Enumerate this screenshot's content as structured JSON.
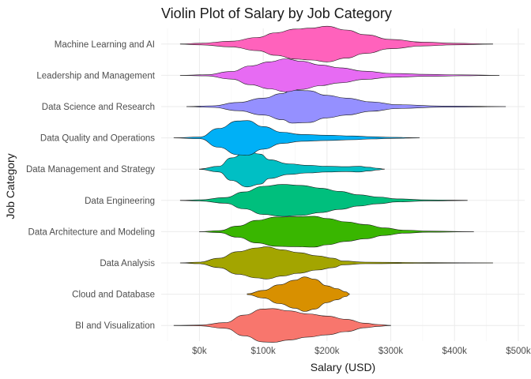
{
  "chart_data": {
    "type": "violin",
    "title": "Violin Plot of Salary by Job Category",
    "xlabel": "Salary (USD)",
    "ylabel": "Job Category",
    "xlim": [
      -60000,
      510000
    ],
    "x_ticks": [
      0,
      100000,
      200000,
      300000,
      400000,
      500000
    ],
    "x_tick_labels": [
      "$0k",
      "$100k",
      "$200k",
      "$300k",
      "$400k",
      "$500k"
    ],
    "grid": true,
    "legend": "none",
    "categories": [
      "BI and Visualization",
      "Cloud and Database",
      "Data Analysis",
      "Data Architecture and Modeling",
      "Data Engineering",
      "Data Management and Strategy",
      "Data Quality and Operations",
      "Data Science and Research",
      "Leadership and Management",
      "Machine Learning and AI"
    ],
    "series": [
      {
        "category": "BI and Visualization",
        "color": "#F8766D",
        "density": [
          [
            -40000,
            0.005
          ],
          [
            0,
            0.02
          ],
          [
            40000,
            0.15
          ],
          [
            70000,
            0.55
          ],
          [
            100000,
            0.88
          ],
          [
            115000,
            0.9
          ],
          [
            140000,
            0.78
          ],
          [
            170000,
            0.62
          ],
          [
            200000,
            0.5
          ],
          [
            230000,
            0.33
          ],
          [
            260000,
            0.12
          ],
          [
            280000,
            0.05
          ],
          [
            300000,
            0.005
          ]
        ]
      },
      {
        "category": "Cloud and Database",
        "color": "#D89000",
        "density": [
          [
            75000,
            0.02
          ],
          [
            100000,
            0.2
          ],
          [
            125000,
            0.5
          ],
          [
            150000,
            0.75
          ],
          [
            165000,
            0.92
          ],
          [
            180000,
            0.8
          ],
          [
            200000,
            0.45
          ],
          [
            215000,
            0.3
          ],
          [
            230000,
            0.12
          ],
          [
            235000,
            0.02
          ]
        ]
      },
      {
        "category": "Data Analysis",
        "color": "#A3A500",
        "density": [
          [
            -30000,
            0.005
          ],
          [
            0,
            0.04
          ],
          [
            30000,
            0.25
          ],
          [
            60000,
            0.6
          ],
          [
            90000,
            0.8
          ],
          [
            105000,
            0.86
          ],
          [
            130000,
            0.7
          ],
          [
            155000,
            0.55
          ],
          [
            185000,
            0.38
          ],
          [
            210000,
            0.25
          ],
          [
            225000,
            0.1
          ],
          [
            260000,
            0.04
          ],
          [
            360000,
            0.015
          ],
          [
            460000,
            0.005
          ]
        ]
      },
      {
        "category": "Data Architecture and Modeling",
        "color": "#39B600",
        "density": [
          [
            0,
            0.005
          ],
          [
            30000,
            0.05
          ],
          [
            60000,
            0.3
          ],
          [
            90000,
            0.6
          ],
          [
            120000,
            0.78
          ],
          [
            150000,
            0.8
          ],
          [
            180000,
            0.82
          ],
          [
            200000,
            0.7
          ],
          [
            230000,
            0.52
          ],
          [
            260000,
            0.38
          ],
          [
            290000,
            0.2
          ],
          [
            320000,
            0.08
          ],
          [
            360000,
            0.03
          ],
          [
            430000,
            0.005
          ]
        ]
      },
      {
        "category": "Data Engineering",
        "color": "#00BF7D",
        "density": [
          [
            -30000,
            0.005
          ],
          [
            0,
            0.03
          ],
          [
            40000,
            0.15
          ],
          [
            70000,
            0.45
          ],
          [
            100000,
            0.75
          ],
          [
            130000,
            0.85
          ],
          [
            160000,
            0.8
          ],
          [
            190000,
            0.65
          ],
          [
            220000,
            0.48
          ],
          [
            250000,
            0.3
          ],
          [
            280000,
            0.18
          ],
          [
            310000,
            0.08
          ],
          [
            360000,
            0.025
          ],
          [
            420000,
            0.005
          ]
        ]
      },
      {
        "category": "Data Management and Strategy",
        "color": "#00BFC4",
        "density": [
          [
            0,
            0.01
          ],
          [
            30000,
            0.15
          ],
          [
            50000,
            0.6
          ],
          [
            75000,
            0.95
          ],
          [
            95000,
            0.8
          ],
          [
            110000,
            0.5
          ],
          [
            140000,
            0.28
          ],
          [
            170000,
            0.2
          ],
          [
            200000,
            0.15
          ],
          [
            230000,
            0.13
          ],
          [
            250000,
            0.15
          ],
          [
            265000,
            0.1
          ],
          [
            280000,
            0.04
          ],
          [
            290000,
            0.005
          ]
        ]
      },
      {
        "category": "Data Quality and Operations",
        "color": "#00B0F6",
        "density": [
          [
            -40000,
            0.005
          ],
          [
            0,
            0.04
          ],
          [
            30000,
            0.5
          ],
          [
            60000,
            0.9
          ],
          [
            75000,
            0.92
          ],
          [
            100000,
            0.6
          ],
          [
            130000,
            0.3
          ],
          [
            160000,
            0.18
          ],
          [
            200000,
            0.14
          ],
          [
            240000,
            0.1
          ],
          [
            270000,
            0.06
          ],
          [
            300000,
            0.03
          ],
          [
            345000,
            0.005
          ]
        ]
      },
      {
        "category": "Data Science and Research",
        "color": "#9590FF",
        "density": [
          [
            -20000,
            0.005
          ],
          [
            20000,
            0.04
          ],
          [
            60000,
            0.22
          ],
          [
            100000,
            0.45
          ],
          [
            130000,
            0.7
          ],
          [
            145000,
            0.88
          ],
          [
            170000,
            0.85
          ],
          [
            200000,
            0.6
          ],
          [
            230000,
            0.45
          ],
          [
            270000,
            0.25
          ],
          [
            310000,
            0.1
          ],
          [
            380000,
            0.03
          ],
          [
            480000,
            0.005
          ]
        ]
      },
      {
        "category": "Leadership and Management",
        "color": "#E76BF3",
        "density": [
          [
            -30000,
            0.005
          ],
          [
            10000,
            0.03
          ],
          [
            50000,
            0.2
          ],
          [
            80000,
            0.5
          ],
          [
            110000,
            0.72
          ],
          [
            135000,
            0.88
          ],
          [
            160000,
            0.75
          ],
          [
            190000,
            0.55
          ],
          [
            220000,
            0.4
          ],
          [
            260000,
            0.22
          ],
          [
            300000,
            0.1
          ],
          [
            360000,
            0.05
          ],
          [
            410000,
            0.025
          ],
          [
            470000,
            0.005
          ]
        ]
      },
      {
        "category": "Machine Learning and AI",
        "color": "#FF62BC",
        "density": [
          [
            -30000,
            0.005
          ],
          [
            0,
            0.04
          ],
          [
            50000,
            0.15
          ],
          [
            90000,
            0.35
          ],
          [
            120000,
            0.6
          ],
          [
            150000,
            0.8
          ],
          [
            175000,
            0.85
          ],
          [
            200000,
            0.95
          ],
          [
            230000,
            0.75
          ],
          [
            260000,
            0.5
          ],
          [
            300000,
            0.25
          ],
          [
            350000,
            0.1
          ],
          [
            400000,
            0.04
          ],
          [
            460000,
            0.005
          ]
        ]
      }
    ]
  }
}
